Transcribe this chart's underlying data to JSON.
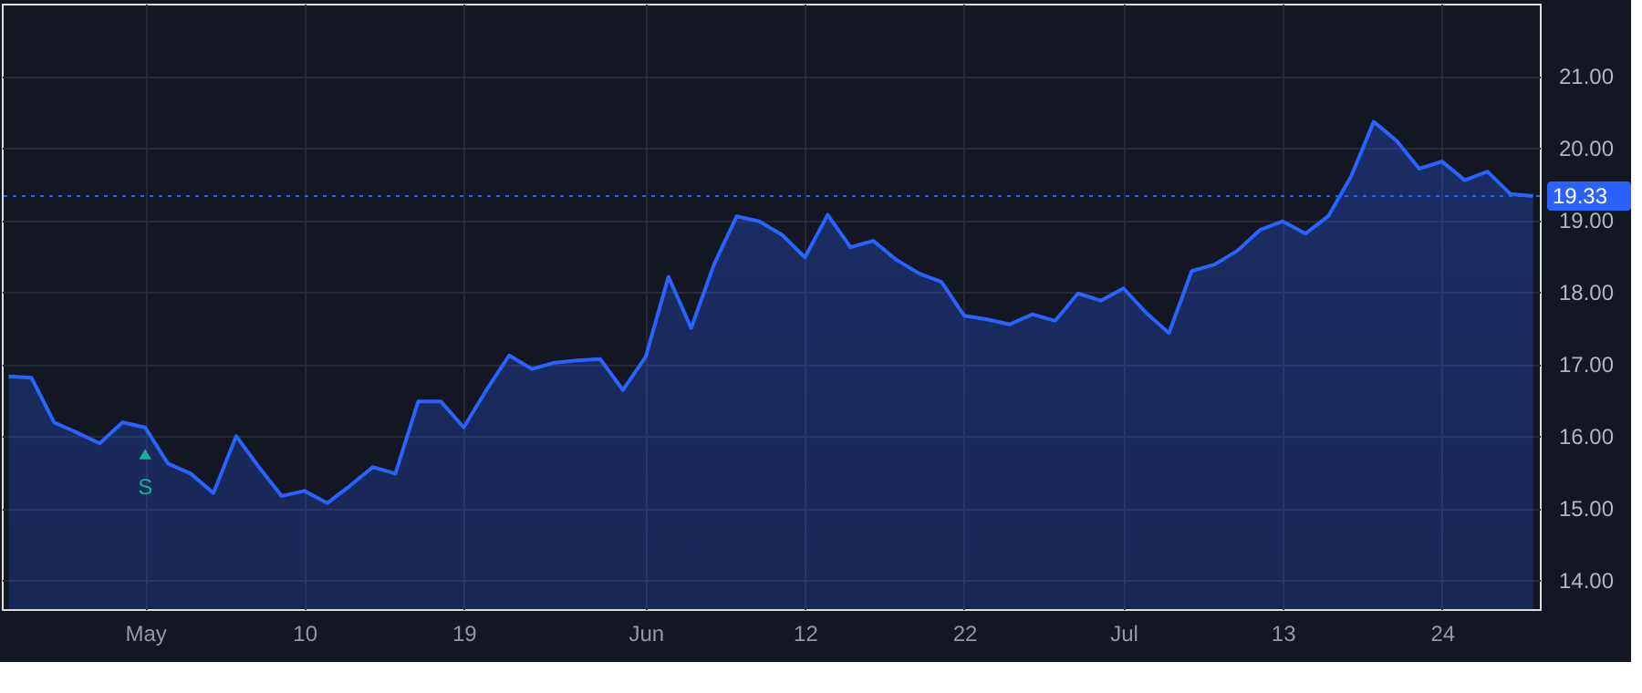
{
  "chart_data": {
    "type": "area",
    "categories": [
      null,
      null,
      null,
      null,
      null,
      null,
      "May",
      null,
      null,
      null,
      null,
      null,
      null,
      "10",
      null,
      null,
      null,
      null,
      null,
      null,
      "19",
      null,
      null,
      null,
      null,
      null,
      null,
      null,
      "Jun",
      null,
      null,
      null,
      null,
      null,
      null,
      "12",
      null,
      null,
      null,
      null,
      null,
      null,
      "22",
      null,
      null,
      null,
      null,
      null,
      null,
      "Jul",
      null,
      null,
      null,
      null,
      null,
      null,
      "13",
      null,
      null,
      null,
      null,
      null,
      null,
      "24",
      null,
      null,
      null,
      null
    ],
    "series": [
      {
        "color": "#2962ff",
        "values": [
          16.83,
          16.81,
          16.19,
          16.05,
          15.9,
          16.19,
          16.12,
          15.62,
          15.48,
          15.21,
          16.0,
          15.57,
          15.17,
          15.24,
          15.07,
          15.31,
          15.57,
          15.48,
          16.48,
          16.48,
          16.12,
          16.64,
          17.12,
          16.93,
          17.02,
          17.05,
          17.07,
          16.64,
          17.1,
          18.21,
          17.5,
          18.38,
          19.05,
          18.98,
          18.79,
          18.48,
          19.07,
          18.62,
          18.71,
          18.45,
          18.26,
          18.14,
          17.67,
          17.62,
          17.55,
          17.69,
          17.6,
          17.98,
          17.88,
          18.05,
          17.71,
          17.43,
          18.29,
          18.38,
          18.57,
          18.86,
          18.98,
          18.81,
          19.05,
          19.6,
          20.36,
          20.1,
          19.71,
          19.81,
          19.55,
          19.67,
          19.36,
          19.33
        ]
      }
    ],
    "ylim": [
      13.6,
      22.0
    ],
    "yticks": [
      {
        "value": 14,
        "label": "14.00"
      },
      {
        "value": 15,
        "label": "15.00"
      },
      {
        "value": 16,
        "label": "16.00"
      },
      {
        "value": 17,
        "label": "17.00"
      },
      {
        "value": 18,
        "label": "18.00"
      },
      {
        "value": 19,
        "label": "19.00"
      },
      {
        "value": 20,
        "label": "20.00"
      },
      {
        "value": 21,
        "label": "21.00"
      }
    ],
    "ref_lines": [
      {
        "axis": "y",
        "value": 19.33,
        "label": "19.33",
        "color": "#2962ff",
        "line_style": "dotted"
      }
    ],
    "annotations": [
      {
        "text": "S",
        "x": "May",
        "y": 15.75
      }
    ],
    "grid": true,
    "marker": "none",
    "line_style": "solid"
  }
}
